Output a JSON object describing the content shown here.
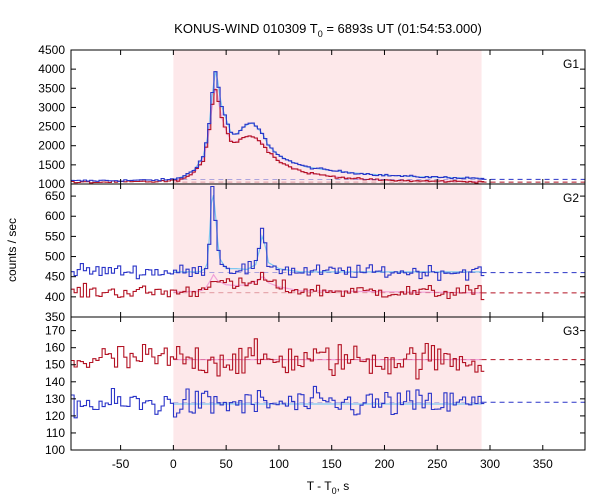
{
  "chart_data": {
    "type": "line",
    "title_main": "KONUS-WIND 010309 T",
    "title_sub": "0",
    "title_rest": " = 6893s UT (01:54:53.000)",
    "xlabel_main": "T - T",
    "xlabel_sub": "0",
    "xlabel_rest": ", s",
    "ylabel": "counts / sec",
    "xlim": [
      -97,
      390
    ],
    "x_ticks": [
      -50,
      0,
      50,
      100,
      150,
      200,
      250,
      300,
      350
    ],
    "highlight": {
      "x_start": 0,
      "x_end": 292,
      "color": "#fde8ea"
    },
    "bin_width": 2.944,
    "colors": {
      "rate_blue": "#2a34c8",
      "rate_red": "#b31223",
      "background_blue": "#2a34c8",
      "background_red": "#b31223",
      "model_cyan": "#7ec8f0",
      "model_pink": "#f0a0d8"
    },
    "panels": [
      {
        "label": "G1",
        "ylim": [
          1000,
          4500
        ],
        "y_ticks": [
          1000,
          1500,
          2000,
          2500,
          3000,
          3500,
          4000,
          4500
        ],
        "background_levels": {
          "blue": 1120,
          "red": 1050
        },
        "series_anchors": {
          "blue": [
            [
              -97,
              1080
            ],
            [
              -60,
              1090
            ],
            [
              -20,
              1100
            ],
            [
              0,
              1120
            ],
            [
              10,
              1200
            ],
            [
              20,
              1380
            ],
            [
              28,
              1700
            ],
            [
              33,
              2300
            ],
            [
              37,
              3400
            ],
            [
              40,
              3950
            ],
            [
              42,
              3700
            ],
            [
              45,
              3100
            ],
            [
              50,
              2700
            ],
            [
              55,
              2300
            ],
            [
              60,
              2300
            ],
            [
              65,
              2450
            ],
            [
              70,
              2550
            ],
            [
              75,
              2600
            ],
            [
              80,
              2450
            ],
            [
              85,
              2300
            ],
            [
              90,
              2000
            ],
            [
              100,
              1750
            ],
            [
              110,
              1600
            ],
            [
              125,
              1450
            ],
            [
              150,
              1350
            ],
            [
              175,
              1280
            ],
            [
              200,
              1230
            ],
            [
              230,
              1190
            ],
            [
              260,
              1170
            ],
            [
              292,
              1150
            ]
          ],
          "red": [
            [
              -97,
              1040
            ],
            [
              -60,
              1050
            ],
            [
              -20,
              1060
            ],
            [
              0,
              1080
            ],
            [
              10,
              1140
            ],
            [
              20,
              1300
            ],
            [
              28,
              1600
            ],
            [
              33,
              2200
            ],
            [
              37,
              3100
            ],
            [
              40,
              3500
            ],
            [
              42,
              3300
            ],
            [
              45,
              2800
            ],
            [
              50,
              2400
            ],
            [
              55,
              2100
            ],
            [
              60,
              2100
            ],
            [
              65,
              2200
            ],
            [
              70,
              2250
            ],
            [
              75,
              2250
            ],
            [
              80,
              2150
            ],
            [
              85,
              2050
            ],
            [
              90,
              1850
            ],
            [
              100,
              1600
            ],
            [
              110,
              1450
            ],
            [
              125,
              1300
            ],
            [
              150,
              1200
            ],
            [
              175,
              1130
            ],
            [
              200,
              1100
            ],
            [
              230,
              1080
            ],
            [
              260,
              1070
            ],
            [
              292,
              1060
            ]
          ]
        },
        "noise": {
          "blue": 20,
          "red": 20
        }
      },
      {
        "label": "G2",
        "ylim": [
          350,
          680
        ],
        "y_ticks": [
          350,
          400,
          450,
          500,
          550,
          600,
          650
        ],
        "background_levels": {
          "blue": 460,
          "red": 410
        },
        "series_anchors": {
          "blue": [
            [
              -97,
              465
            ],
            [
              0,
              462
            ],
            [
              25,
              462
            ],
            [
              30,
              470
            ],
            [
              33,
              490
            ],
            [
              35,
              600
            ],
            [
              37,
              665
            ],
            [
              39,
              640
            ],
            [
              41,
              560
            ],
            [
              44,
              495
            ],
            [
              50,
              470
            ],
            [
              60,
              470
            ],
            [
              70,
              468
            ],
            [
              78,
              480
            ],
            [
              82,
              520
            ],
            [
              84,
              550
            ],
            [
              87,
              530
            ],
            [
              90,
              485
            ],
            [
              100,
              470
            ],
            [
              120,
              462
            ],
            [
              292,
              462
            ]
          ],
          "red": [
            [
              -97,
              412
            ],
            [
              0,
              412
            ],
            [
              25,
              414
            ],
            [
              30,
              420
            ],
            [
              35,
              440
            ],
            [
              38,
              455
            ],
            [
              42,
              440
            ],
            [
              50,
              430
            ],
            [
              60,
              428
            ],
            [
              70,
              430
            ],
            [
              80,
              440
            ],
            [
              85,
              452
            ],
            [
              90,
              435
            ],
            [
              100,
              425
            ],
            [
              120,
              415
            ],
            [
              292,
              410
            ]
          ]
        },
        "noise": {
          "blue": 12,
          "red": 12
        }
      },
      {
        "label": "G3",
        "ylim": [
          100,
          178
        ],
        "y_ticks": [
          100,
          110,
          120,
          130,
          140,
          150,
          160,
          170
        ],
        "background_levels": {
          "blue": 128,
          "red": 153
        },
        "series_anchors": {
          "blue": [
            [
              -97,
              127
            ],
            [
              292,
              127
            ]
          ],
          "red": [
            [
              -97,
              153
            ],
            [
              292,
              153
            ]
          ]
        },
        "noise": {
          "blue": 6,
          "red": 7
        }
      }
    ]
  }
}
